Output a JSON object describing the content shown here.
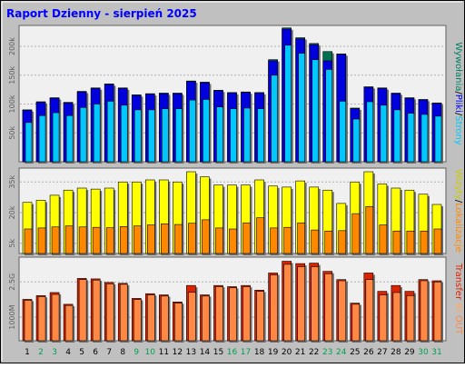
{
  "title": "Raport Dzienny -  sierpień 2025",
  "colors": {
    "background": "#c0c0c0",
    "panel": "#f0f0f0",
    "title": "#0000ff",
    "weekend_day": "#00a050",
    "weekday_day": "#000000",
    "visits": "#0000dd",
    "hits": "#00bbcc",
    "pages": "#00c8ff",
    "files": "#0090c0",
    "sites": "#ffff00",
    "kbytes_in": "#ff8800",
    "kbytes_out": "#ff6600",
    "traffic": "#dd2200",
    "traffic_front": "#ff8844"
  },
  "legend": {
    "top": [
      {
        "text": "Wywołania",
        "color": "#008060"
      },
      {
        "text": "/",
        "color": "#000000"
      },
      {
        "text": "Pliki",
        "color": "#0000ff"
      },
      {
        "text": "/",
        "color": "#000000"
      },
      {
        "text": "Strony",
        "color": "#00c8ff"
      }
    ],
    "middle": [
      {
        "text": "Wizyty",
        "color": "#cccc00"
      },
      {
        "text": "/",
        "color": "#000000"
      },
      {
        "text": "Lokalizacje",
        "color": "#ff8800"
      }
    ],
    "bottom": [
      {
        "text": "Transfer",
        "color": "#dd2200"
      },
      {
        "text": " IN ",
        "color": "#ffaa66"
      },
      {
        "text": "OUT",
        "color": "#ff8844"
      }
    ]
  },
  "chart_data": {
    "type": "bar",
    "title": "Raport Dzienny -  sierpień 2025",
    "categories": [
      "1",
      "2",
      "3",
      "4",
      "5",
      "6",
      "7",
      "8",
      "9",
      "10",
      "11",
      "12",
      "13",
      "14",
      "15",
      "16",
      "17",
      "18",
      "19",
      "20",
      "21",
      "22",
      "23",
      "24",
      "25",
      "26",
      "27",
      "28",
      "29",
      "30",
      "31"
    ],
    "weekend_days": [
      "2",
      "3",
      "9",
      "10",
      "16",
      "17",
      "23",
      "24",
      "30",
      "31"
    ],
    "panels": [
      {
        "name": "top",
        "ylim": [
          0,
          230000
        ],
        "yticks": [
          50000,
          100000,
          150000,
          200000
        ],
        "ytick_labels": [
          "50k",
          "100k",
          "150k",
          "200k"
        ],
        "series": [
          {
            "name": "Wywołania",
            "values": [
              90000,
              104000,
              111000,
              103000,
              122000,
              128000,
              135000,
              128000,
              116000,
              118000,
              119000,
              119000,
              140000,
              138000,
              124000,
              120000,
              121000,
              120000,
              177000,
              232000,
              215000,
              205000,
              191000,
              187000,
              93000,
              130000,
              128000,
              119000,
              111000,
              108000,
              102000
            ]
          },
          {
            "name": "Pliki",
            "values": [
              89000,
              103000,
              110000,
              102000,
              121000,
              127000,
              134000,
              127000,
              115000,
              117000,
              118000,
              118000,
              139000,
              137000,
              123000,
              119000,
              120000,
              119000,
              175000,
              230000,
              213000,
              203000,
              175000,
              186000,
              92000,
              129000,
              127000,
              118000,
              110000,
              107000,
              101000
            ]
          },
          {
            "name": "Strony",
            "values": [
              68000,
              80000,
              85000,
              80000,
              94000,
              100000,
              105000,
              98000,
              90000,
              90000,
              92000,
              92000,
              107000,
              108000,
              95000,
              92000,
              93000,
              92000,
              150000,
              202000,
              188000,
              177000,
              160000,
              105000,
              74000,
              104000,
              98000,
              90000,
              84000,
              82000,
              79000
            ]
          }
        ]
      },
      {
        "name": "middle",
        "ylim": [
          0,
          40000
        ],
        "yticks": [
          5000,
          20000,
          35000
        ],
        "ytick_labels": [
          "5k",
          "20k",
          "35k"
        ],
        "series": [
          {
            "name": "Wizyty",
            "values": [
              25000,
              26000,
              28500,
              31000,
              32000,
              31500,
              32000,
              35000,
              35000,
              36000,
              36000,
              35000,
              40000,
              37500,
              33500,
              33500,
              33500,
              36000,
              33000,
              32500,
              35500,
              32500,
              31000,
              24500,
              35000,
              40000,
              34000,
              32000,
              31000,
              29000,
              24000
            ]
          },
          {
            "name": "Lokalizacje",
            "values": [
              12000,
              12500,
              13000,
              13500,
              13000,
              12800,
              12600,
              13200,
              13500,
              14000,
              14500,
              14200,
              14800,
              16500,
              12500,
              12000,
              15000,
              17500,
              12500,
              12800,
              15000,
              11500,
              11000,
              11200,
              19500,
              23000,
              14000,
              11000,
              11000,
              11000,
              12000
            ]
          }
        ]
      },
      {
        "name": "bottom",
        "ylim": [
          0,
          3400000
        ],
        "yticks": [
          1000000,
          2500000
        ],
        "ytick_labels": [
          "1000M",
          "2.5G"
        ],
        "series": [
          {
            "name": "IN",
            "values": [
              1760000,
              1920000,
              2050000,
              1550000,
              2650000,
              2630000,
              2480000,
              2440000,
              1800000,
              2000000,
              1950000,
              1650000,
              2350000,
              1950000,
              2350000,
              2300000,
              2350000,
              2150000,
              2880000,
              3380000,
              3280000,
              3300000,
              2950000,
              2600000,
              1600000,
              2880000,
              2100000,
              2350000,
              2100000,
              2600000,
              2550000
            ]
          },
          {
            "name": "OUT",
            "values": [
              1720000,
              1880000,
              1970000,
              1500000,
              2600000,
              2580000,
              2420000,
              2400000,
              1750000,
              1950000,
              1900000,
              1600000,
              2060000,
              1900000,
              2300000,
              2250000,
              2300000,
              2100000,
              2800000,
              3250000,
              3150000,
              3150000,
              2850000,
              2550000,
              1550000,
              2600000,
              1950000,
              2050000,
              1920000,
              2550000,
              2500000
            ]
          }
        ]
      }
    ]
  }
}
